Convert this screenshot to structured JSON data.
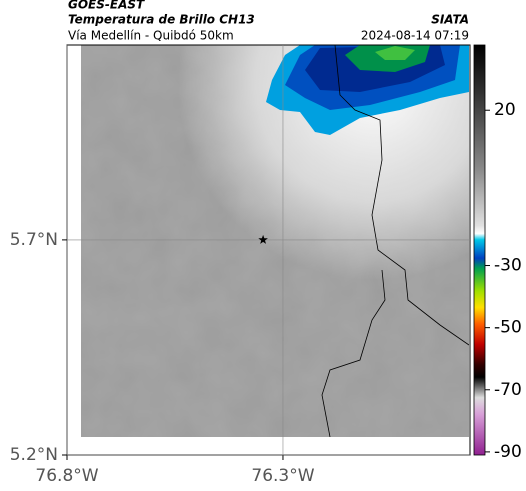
{
  "header": {
    "satellite": "GOES-EAST",
    "product": "Temperatura de Brillo CH13",
    "region": "Vía Medellín - Quibdó 50km",
    "source": "SIATA",
    "timestamp": "2024-08-14 07:19"
  },
  "chart_data": {
    "type": "map",
    "xlim": [
      -76.8,
      -75.867
    ],
    "ylim": [
      5.2,
      6.153
    ],
    "xticks": [
      {
        "value": -76.8,
        "label": "76.8°W"
      },
      {
        "value": -76.3,
        "label": "76.3°W"
      }
    ],
    "yticks": [
      {
        "value": 5.2,
        "label": "5.2°N"
      },
      {
        "value": 5.7,
        "label": "5.7°N"
      }
    ],
    "grid": true,
    "marker": {
      "lon": -76.346,
      "lat": 5.7
    },
    "colorbar": {
      "lim": [
        -91,
        41
      ],
      "ticks": [
        20,
        -30,
        -50,
        -70,
        -90
      ]
    }
  }
}
